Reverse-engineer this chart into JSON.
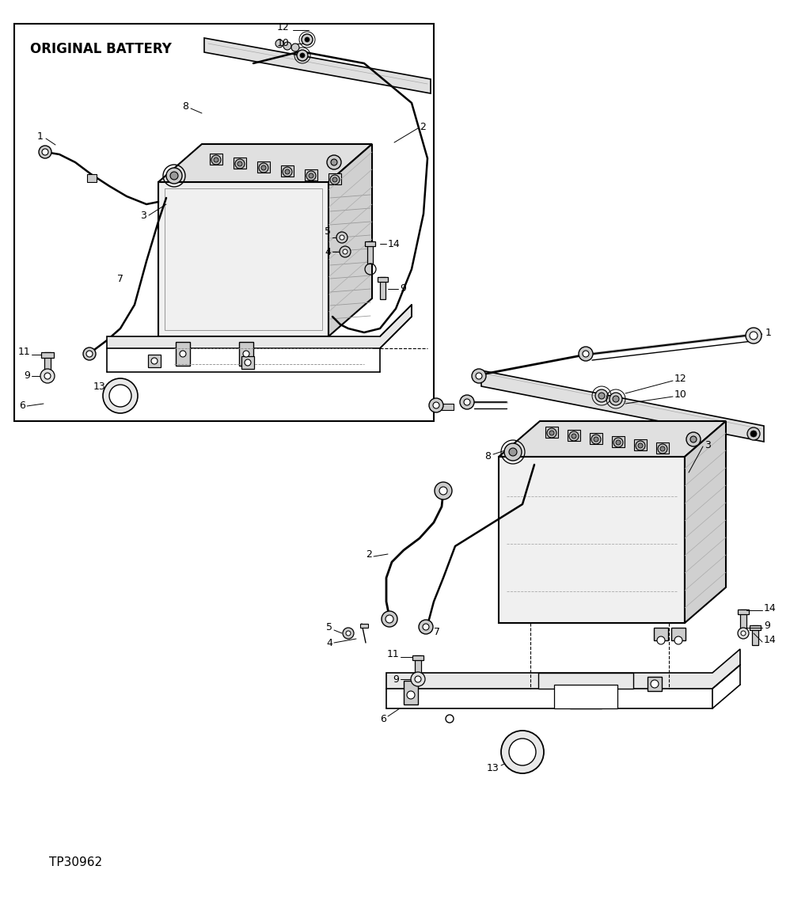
{
  "background_color": "#ffffff",
  "text_color": "#000000",
  "line_color": "#000000",
  "labels": {
    "original_battery_text": "ORIGINAL BATTERY",
    "tp_code": "TP30962"
  },
  "figsize": [
    9.98,
    11.61
  ],
  "dpi": 100
}
